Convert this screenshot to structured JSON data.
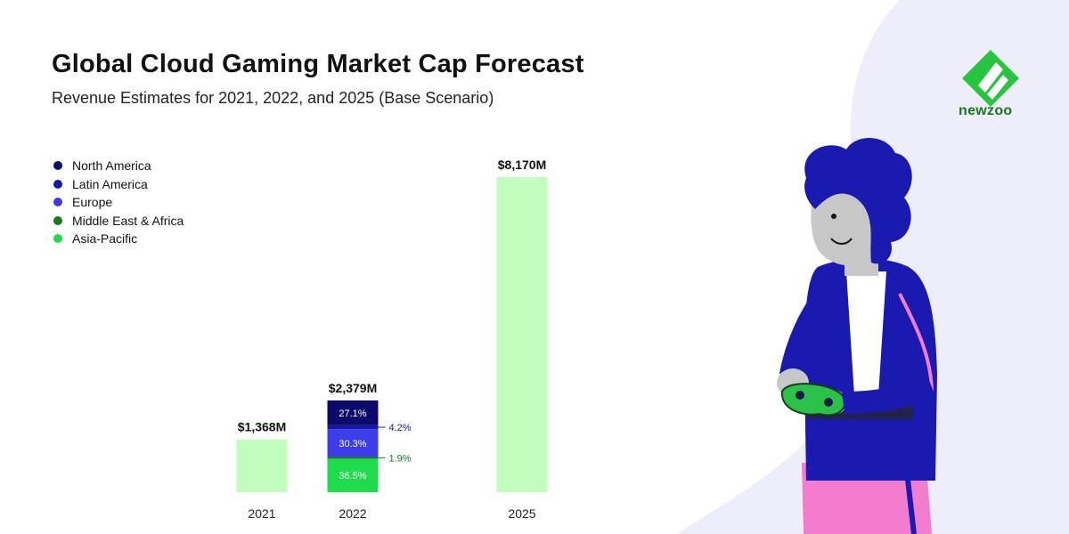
{
  "header": {
    "title": "Global Cloud Gaming Market Cap Forecast",
    "subtitle": "Revenue Estimates for 2021, 2022, and 2025 (Base Scenario)"
  },
  "brand": {
    "name": "newzoo"
  },
  "colors": {
    "north_america": "#0b0a6b",
    "latin_america": "#1717a8",
    "europe": "#3c3ceb",
    "middle_east_africa": "#157a1e",
    "asia_pacific": "#1fdc4c",
    "total_bar": "#c2ffbf",
    "background_blob": "#eeeefb"
  },
  "chart_data": {
    "type": "bar",
    "title": "Global Cloud Gaming Market Cap Forecast",
    "subtitle": "Revenue Estimates for 2021, 2022, and 2025 (Base Scenario)",
    "xlabel": "",
    "ylabel": "",
    "unit": "$M",
    "ylim": [
      0,
      8170
    ],
    "categories": [
      "2021",
      "2022",
      "2025"
    ],
    "values": [
      1368,
      2379,
      8170
    ],
    "value_labels": [
      "$1,368M",
      "$2,379M",
      "$8,170M"
    ],
    "legend": [
      "North America",
      "Latin America",
      "Europe",
      "Middle East & Africa",
      "Asia-Pacific"
    ],
    "breakdown_2022": [
      {
        "region": "Asia-Pacific",
        "share": 36.5,
        "label": "36.5%"
      },
      {
        "region": "Middle East & Africa",
        "share": 1.9,
        "label": "1.9%"
      },
      {
        "region": "Europe",
        "share": 30.3,
        "label": "30.3%"
      },
      {
        "region": "Latin America",
        "share": 4.2,
        "label": "4.2%"
      },
      {
        "region": "North America",
        "share": 27.1,
        "label": "27.1%"
      }
    ]
  }
}
